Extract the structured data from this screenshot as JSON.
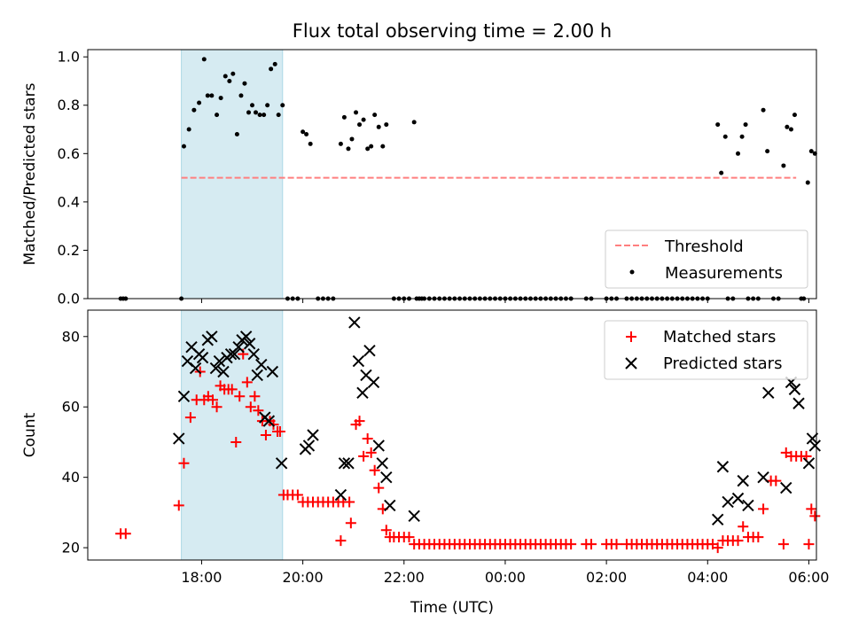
{
  "colors": {
    "threshold": "#ff7f7f",
    "highlight": "#add8e6",
    "measurements": "#000000",
    "matched": "#ff0000",
    "predicted": "#000000"
  },
  "chart_data": [
    {
      "type": "scatter",
      "title": "Flux total observing time = 2.00 h",
      "xlabel": "",
      "ylabel": "Matched/Predicted stars",
      "x_unit": "hours since 17:00 UTC",
      "xlim": [
        -1.25,
        13.15
      ],
      "ylim": [
        0.0,
        1.03
      ],
      "xtick_positions": [
        1,
        3,
        5,
        7,
        9,
        11,
        13
      ],
      "yticks": [
        0.0,
        0.2,
        0.4,
        0.6,
        0.8,
        1.0
      ],
      "ytick_labels": [
        "0.0",
        "0.2",
        "0.4",
        "0.6",
        "0.8",
        "1.0"
      ],
      "highlight_span": [
        0.6,
        2.6
      ],
      "threshold": {
        "value": 0.5,
        "x_range": [
          0.6,
          12.75
        ]
      },
      "legend": {
        "position": "lower right",
        "threshold_label": "Threshold",
        "measurements_label": "Measurements"
      },
      "measurements": [
        [
          0.6,
          0.0
        ],
        [
          0.65,
          0.63
        ],
        [
          0.75,
          0.7
        ],
        [
          0.85,
          0.78
        ],
        [
          0.95,
          0.81
        ],
        [
          1.05,
          0.99
        ],
        [
          1.12,
          0.84
        ],
        [
          1.2,
          0.84
        ],
        [
          1.3,
          0.76
        ],
        [
          1.38,
          0.83
        ],
        [
          1.47,
          0.92
        ],
        [
          1.55,
          0.9
        ],
        [
          1.62,
          0.93
        ],
        [
          1.7,
          0.68
        ],
        [
          1.78,
          0.84
        ],
        [
          1.85,
          0.89
        ],
        [
          1.93,
          0.77
        ],
        [
          2.0,
          0.8
        ],
        [
          2.07,
          0.77
        ],
        [
          2.15,
          0.76
        ],
        [
          2.23,
          0.76
        ],
        [
          2.3,
          0.8
        ],
        [
          2.37,
          0.95
        ],
        [
          2.45,
          0.97
        ],
        [
          2.52,
          0.76
        ],
        [
          2.6,
          0.8
        ],
        [
          3.0,
          0.69
        ],
        [
          3.07,
          0.68
        ],
        [
          3.15,
          0.64
        ],
        [
          3.75,
          0.64
        ],
        [
          3.82,
          0.75
        ],
        [
          3.9,
          0.62
        ],
        [
          3.97,
          0.66
        ],
        [
          4.05,
          0.77
        ],
        [
          4.12,
          0.72
        ],
        [
          4.2,
          0.74
        ],
        [
          4.28,
          0.62
        ],
        [
          4.35,
          0.63
        ],
        [
          4.42,
          0.76
        ],
        [
          4.5,
          0.71
        ],
        [
          4.58,
          0.63
        ],
        [
          4.65,
          0.72
        ],
        [
          5.2,
          0.73
        ],
        [
          11.2,
          0.72
        ],
        [
          11.27,
          0.52
        ],
        [
          11.35,
          0.67
        ],
        [
          11.6,
          0.6
        ],
        [
          11.68,
          0.67
        ],
        [
          11.75,
          0.72
        ],
        [
          12.1,
          0.78
        ],
        [
          12.18,
          0.61
        ],
        [
          12.5,
          0.55
        ],
        [
          12.57,
          0.71
        ],
        [
          12.65,
          0.7
        ],
        [
          12.72,
          0.76
        ],
        [
          12.98,
          0.48
        ],
        [
          13.05,
          0.61
        ],
        [
          13.12,
          0.6
        ],
        [
          -0.6,
          0.0
        ],
        [
          -0.55,
          0.0
        ],
        [
          -0.5,
          0.0
        ],
        [
          2.7,
          0.0
        ],
        [
          2.8,
          0.0
        ],
        [
          2.9,
          0.0
        ],
        [
          3.3,
          0.0
        ],
        [
          3.4,
          0.0
        ],
        [
          3.5,
          0.0
        ],
        [
          3.6,
          0.0
        ],
        [
          4.8,
          0.0
        ],
        [
          4.9,
          0.0
        ],
        [
          5.0,
          0.0
        ],
        [
          5.1,
          0.0
        ],
        [
          5.25,
          0.0
        ],
        [
          5.3,
          0.0
        ],
        [
          5.35,
          0.0
        ],
        [
          5.4,
          0.0
        ],
        [
          5.5,
          0.0
        ],
        [
          5.6,
          0.0
        ],
        [
          5.7,
          0.0
        ],
        [
          5.8,
          0.0
        ],
        [
          5.9,
          0.0
        ],
        [
          6.0,
          0.0
        ],
        [
          6.1,
          0.0
        ],
        [
          6.2,
          0.0
        ],
        [
          6.3,
          0.0
        ],
        [
          6.4,
          0.0
        ],
        [
          6.5,
          0.0
        ],
        [
          6.6,
          0.0
        ],
        [
          6.7,
          0.0
        ],
        [
          6.8,
          0.0
        ],
        [
          6.9,
          0.0
        ],
        [
          7.0,
          0.0
        ],
        [
          7.1,
          0.0
        ],
        [
          7.2,
          0.0
        ],
        [
          7.3,
          0.0
        ],
        [
          7.4,
          0.0
        ],
        [
          7.5,
          0.0
        ],
        [
          7.6,
          0.0
        ],
        [
          7.7,
          0.0
        ],
        [
          7.8,
          0.0
        ],
        [
          7.9,
          0.0
        ],
        [
          8.0,
          0.0
        ],
        [
          8.1,
          0.0
        ],
        [
          8.2,
          0.0
        ],
        [
          8.3,
          0.0
        ],
        [
          8.6,
          0.0
        ],
        [
          8.7,
          0.0
        ],
        [
          9.0,
          0.0
        ],
        [
          9.1,
          0.0
        ],
        [
          9.2,
          0.0
        ],
        [
          9.4,
          0.0
        ],
        [
          9.5,
          0.0
        ],
        [
          9.6,
          0.0
        ],
        [
          9.7,
          0.0
        ],
        [
          9.8,
          0.0
        ],
        [
          9.9,
          0.0
        ],
        [
          10.0,
          0.0
        ],
        [
          10.1,
          0.0
        ],
        [
          10.2,
          0.0
        ],
        [
          10.3,
          0.0
        ],
        [
          10.4,
          0.0
        ],
        [
          10.5,
          0.0
        ],
        [
          10.6,
          0.0
        ],
        [
          10.7,
          0.0
        ],
        [
          10.8,
          0.0
        ],
        [
          10.9,
          0.0
        ],
        [
          11.0,
          0.0
        ],
        [
          11.4,
          0.0
        ],
        [
          11.5,
          0.0
        ],
        [
          11.8,
          0.0
        ],
        [
          11.9,
          0.0
        ],
        [
          12.0,
          0.0
        ],
        [
          12.3,
          0.0
        ],
        [
          12.4,
          0.0
        ],
        [
          12.85,
          0.0
        ],
        [
          12.9,
          0.0
        ]
      ]
    },
    {
      "type": "scatter",
      "title": "",
      "xlabel": "Time (UTC)",
      "ylabel": "Count",
      "x_unit": "hours since 17:00 UTC",
      "xlim": [
        -1.25,
        13.15
      ],
      "ylim": [
        16.5,
        87.5
      ],
      "xticks": [
        1,
        3,
        5,
        7,
        9,
        11,
        13
      ],
      "xtick_labels": [
        "18:00",
        "20:00",
        "22:00",
        "00:00",
        "02:00",
        "04:00",
        "06:00"
      ],
      "yticks": [
        20,
        40,
        60,
        80
      ],
      "ytick_labels": [
        "20",
        "40",
        "60",
        "80"
      ],
      "highlight_span": [
        0.6,
        2.6
      ],
      "legend": {
        "position": "upper right",
        "matched_label": "Matched stars",
        "predicted_label": "Predicted stars"
      },
      "matched": [
        [
          -0.6,
          24
        ],
        [
          -0.5,
          24
        ],
        [
          0.55,
          32
        ],
        [
          0.65,
          44
        ],
        [
          0.78,
          57
        ],
        [
          0.9,
          62
        ],
        [
          0.97,
          70
        ],
        [
          1.05,
          62
        ],
        [
          1.13,
          63
        ],
        [
          1.22,
          62
        ],
        [
          1.3,
          60
        ],
        [
          1.37,
          66
        ],
        [
          1.45,
          65
        ],
        [
          1.53,
          65
        ],
        [
          1.6,
          65
        ],
        [
          1.68,
          50
        ],
        [
          1.75,
          63
        ],
        [
          1.82,
          75
        ],
        [
          1.9,
          67
        ],
        [
          1.97,
          60
        ],
        [
          2.05,
          63
        ],
        [
          2.12,
          59
        ],
        [
          2.2,
          56
        ],
        [
          2.27,
          52
        ],
        [
          2.35,
          56
        ],
        [
          2.42,
          55
        ],
        [
          2.5,
          53
        ],
        [
          2.55,
          53
        ],
        [
          2.62,
          35
        ],
        [
          2.7,
          35
        ],
        [
          2.8,
          35
        ],
        [
          2.9,
          35
        ],
        [
          3.0,
          33
        ],
        [
          3.1,
          33
        ],
        [
          3.2,
          33
        ],
        [
          3.3,
          33
        ],
        [
          3.4,
          33
        ],
        [
          3.5,
          33
        ],
        [
          3.6,
          33
        ],
        [
          3.7,
          33
        ],
        [
          3.8,
          33
        ],
        [
          3.92,
          33
        ],
        [
          3.75,
          22
        ],
        [
          3.95,
          27
        ],
        [
          4.05,
          55
        ],
        [
          4.12,
          56
        ],
        [
          4.2,
          46
        ],
        [
          4.28,
          51
        ],
        [
          4.35,
          47
        ],
        [
          4.42,
          42
        ],
        [
          4.5,
          37
        ],
        [
          4.58,
          31
        ],
        [
          4.65,
          25
        ],
        [
          4.72,
          23
        ],
        [
          4.8,
          23
        ],
        [
          4.9,
          23
        ],
        [
          5.0,
          23
        ],
        [
          5.1,
          23
        ],
        [
          5.2,
          21
        ],
        [
          5.3,
          21
        ],
        [
          5.4,
          21
        ],
        [
          5.5,
          21
        ],
        [
          5.6,
          21
        ],
        [
          5.7,
          21
        ],
        [
          5.8,
          21
        ],
        [
          5.9,
          21
        ],
        [
          6.0,
          21
        ],
        [
          6.1,
          21
        ],
        [
          6.2,
          21
        ],
        [
          6.3,
          21
        ],
        [
          6.4,
          21
        ],
        [
          6.5,
          21
        ],
        [
          6.6,
          21
        ],
        [
          6.7,
          21
        ],
        [
          6.8,
          21
        ],
        [
          6.9,
          21
        ],
        [
          7.0,
          21
        ],
        [
          7.1,
          21
        ],
        [
          7.2,
          21
        ],
        [
          7.3,
          21
        ],
        [
          7.4,
          21
        ],
        [
          7.5,
          21
        ],
        [
          7.6,
          21
        ],
        [
          7.7,
          21
        ],
        [
          7.8,
          21
        ],
        [
          7.9,
          21
        ],
        [
          8.0,
          21
        ],
        [
          8.1,
          21
        ],
        [
          8.2,
          21
        ],
        [
          8.3,
          21
        ],
        [
          8.6,
          21
        ],
        [
          8.7,
          21
        ],
        [
          9.0,
          21
        ],
        [
          9.1,
          21
        ],
        [
          9.2,
          21
        ],
        [
          9.4,
          21
        ],
        [
          9.5,
          21
        ],
        [
          9.6,
          21
        ],
        [
          9.7,
          21
        ],
        [
          9.8,
          21
        ],
        [
          9.9,
          21
        ],
        [
          10.0,
          21
        ],
        [
          10.1,
          21
        ],
        [
          10.2,
          21
        ],
        [
          10.3,
          21
        ],
        [
          10.4,
          21
        ],
        [
          10.5,
          21
        ],
        [
          10.6,
          21
        ],
        [
          10.7,
          21
        ],
        [
          10.8,
          21
        ],
        [
          10.9,
          21
        ],
        [
          11.0,
          21
        ],
        [
          11.1,
          21
        ],
        [
          11.2,
          20
        ],
        [
          11.3,
          22
        ],
        [
          11.4,
          22
        ],
        [
          11.5,
          22
        ],
        [
          11.6,
          22
        ],
        [
          11.7,
          26
        ],
        [
          11.8,
          23
        ],
        [
          11.9,
          23
        ],
        [
          12.0,
          23
        ],
        [
          12.1,
          31
        ],
        [
          12.25,
          39
        ],
        [
          12.35,
          39
        ],
        [
          12.5,
          21
        ],
        [
          12.55,
          47
        ],
        [
          12.65,
          46
        ],
        [
          12.75,
          46
        ],
        [
          12.85,
          46
        ],
        [
          12.95,
          46
        ],
        [
          13.0,
          21
        ],
        [
          13.05,
          31
        ],
        [
          13.12,
          29
        ]
      ],
      "predicted": [
        [
          0.55,
          51
        ],
        [
          0.65,
          63
        ],
        [
          0.72,
          73
        ],
        [
          0.8,
          77
        ],
        [
          0.88,
          71
        ],
        [
          0.95,
          75
        ],
        [
          1.02,
          74
        ],
        [
          1.12,
          79
        ],
        [
          1.2,
          80
        ],
        [
          1.28,
          71
        ],
        [
          1.35,
          73
        ],
        [
          1.43,
          70
        ],
        [
          1.5,
          74
        ],
        [
          1.58,
          75
        ],
        [
          1.65,
          75
        ],
        [
          1.73,
          77
        ],
        [
          1.8,
          79
        ],
        [
          1.88,
          80
        ],
        [
          1.95,
          78
        ],
        [
          2.03,
          75
        ],
        [
          2.1,
          69
        ],
        [
          2.18,
          72
        ],
        [
          2.25,
          57
        ],
        [
          2.33,
          56
        ],
        [
          2.4,
          70
        ],
        [
          2.58,
          44
        ],
        [
          3.05,
          48
        ],
        [
          3.12,
          49
        ],
        [
          3.2,
          52
        ],
        [
          3.75,
          35
        ],
        [
          3.82,
          44
        ],
        [
          3.9,
          44
        ],
        [
          4.02,
          84
        ],
        [
          4.1,
          73
        ],
        [
          4.18,
          64
        ],
        [
          4.25,
          69
        ],
        [
          4.32,
          76
        ],
        [
          4.4,
          67
        ],
        [
          4.5,
          49
        ],
        [
          4.57,
          44
        ],
        [
          4.65,
          40
        ],
        [
          4.72,
          32
        ],
        [
          5.2,
          29
        ],
        [
          11.2,
          28
        ],
        [
          11.3,
          43
        ],
        [
          11.4,
          33
        ],
        [
          11.6,
          34
        ],
        [
          11.7,
          39
        ],
        [
          11.8,
          32
        ],
        [
          12.1,
          40
        ],
        [
          12.2,
          64
        ],
        [
          12.55,
          37
        ],
        [
          12.65,
          67
        ],
        [
          12.72,
          65
        ],
        [
          12.8,
          61
        ],
        [
          13.0,
          44
        ],
        [
          13.07,
          51
        ],
        [
          13.12,
          49
        ]
      ]
    }
  ]
}
